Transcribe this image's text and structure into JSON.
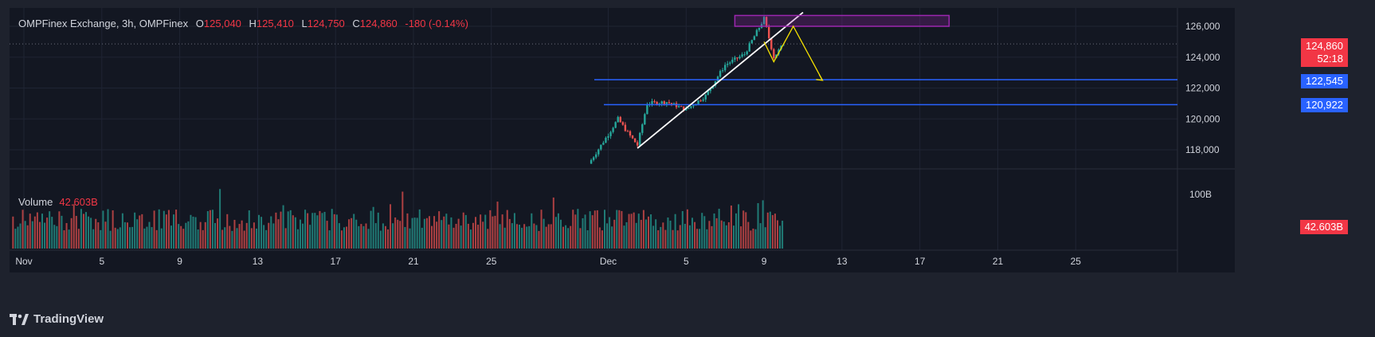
{
  "legend": {
    "symbol": "OMPFinex Exchange, 3h, OMPFinex",
    "o_label": "O",
    "o_value": "125,040",
    "h_label": "H",
    "h_value": "125,410",
    "l_label": "L",
    "l_value": "124,750",
    "c_label": "C",
    "c_value": "124,860",
    "change": "-180 (-0.14%)"
  },
  "volume_legend": {
    "label": "Volume",
    "value": "42.603B"
  },
  "price_tags": {
    "last_price": "124,860",
    "countdown": "52:18",
    "level_1": "122,545",
    "level_2": "120,922",
    "volume": "42.603B"
  },
  "branding": {
    "name": "TradingView"
  },
  "colors": {
    "background": "#131722",
    "panel": "#1e222d",
    "up": "#26a69a",
    "down": "#ef5350",
    "level_line": "#2962ff",
    "trend_line": "#ffffff",
    "projection": "#f5e100",
    "zone": "#9c27b0"
  },
  "chart_data": {
    "type": "candlestick",
    "title": "OMPFinex Exchange, 3h, OMPFinex",
    "interval": "3h",
    "y_axis": {
      "ticks": [
        118000,
        120000,
        122000,
        124000,
        126000
      ],
      "tick_labels": [
        "118,000",
        "120,000",
        "122,000",
        "124,000",
        "126,000"
      ],
      "range": [
        117000,
        126900
      ]
    },
    "x_axis": {
      "tick_labels": [
        "Nov",
        "5",
        "9",
        "13",
        "17",
        "21",
        "25",
        "Dec",
        "5",
        "9",
        "13",
        "17",
        "21",
        "25"
      ]
    },
    "last": {
      "open": 125040,
      "high": 125410,
      "low": 124750,
      "close": 124860,
      "change": -180,
      "change_pct": -0.14
    },
    "horizontal_levels": [
      122545,
      120922
    ],
    "visible_close_path": [
      {
        "date": "Nov 30",
        "close": 117100
      },
      {
        "date": "Dec 1",
        "close": 119000
      },
      {
        "date": "Dec 1.5",
        "close": 120000
      },
      {
        "date": "Dec 2",
        "close": 119100
      },
      {
        "date": "Dec 2.5",
        "close": 118300
      },
      {
        "date": "Dec 3",
        "close": 121000
      },
      {
        "date": "Dec 4",
        "close": 121100
      },
      {
        "date": "Dec 5",
        "close": 120600
      },
      {
        "date": "Dec 6",
        "close": 121500
      },
      {
        "date": "Dec 7",
        "close": 123500
      },
      {
        "date": "Dec 8",
        "close": 124200
      },
      {
        "date": "Dec 9",
        "close": 126500
      },
      {
        "date": "Dec 9.5",
        "close": 124000
      },
      {
        "date": "Dec 10",
        "close": 124860
      }
    ],
    "annotations": [
      {
        "type": "trendline",
        "from": {
          "date": "Dec 2.5",
          "price": 118100
        },
        "to": {
          "date": "Dec 11",
          "price": 126900
        }
      },
      {
        "type": "rectangle",
        "from_date": "Dec 7.5",
        "to_date": "Dec 18.5",
        "price_top": 126700,
        "price_bottom": 126000
      },
      {
        "type": "projection_path",
        "points": [
          {
            "date": "Dec 9",
            "price": 125000
          },
          {
            "date": "Dec 9.5",
            "price": 123700
          },
          {
            "date": "Dec 10.5",
            "price": 126000
          },
          {
            "date": "Dec 12",
            "price": 122500
          }
        ]
      }
    ],
    "volume": {
      "current": "42.603B",
      "axis_label": "100B"
    }
  }
}
